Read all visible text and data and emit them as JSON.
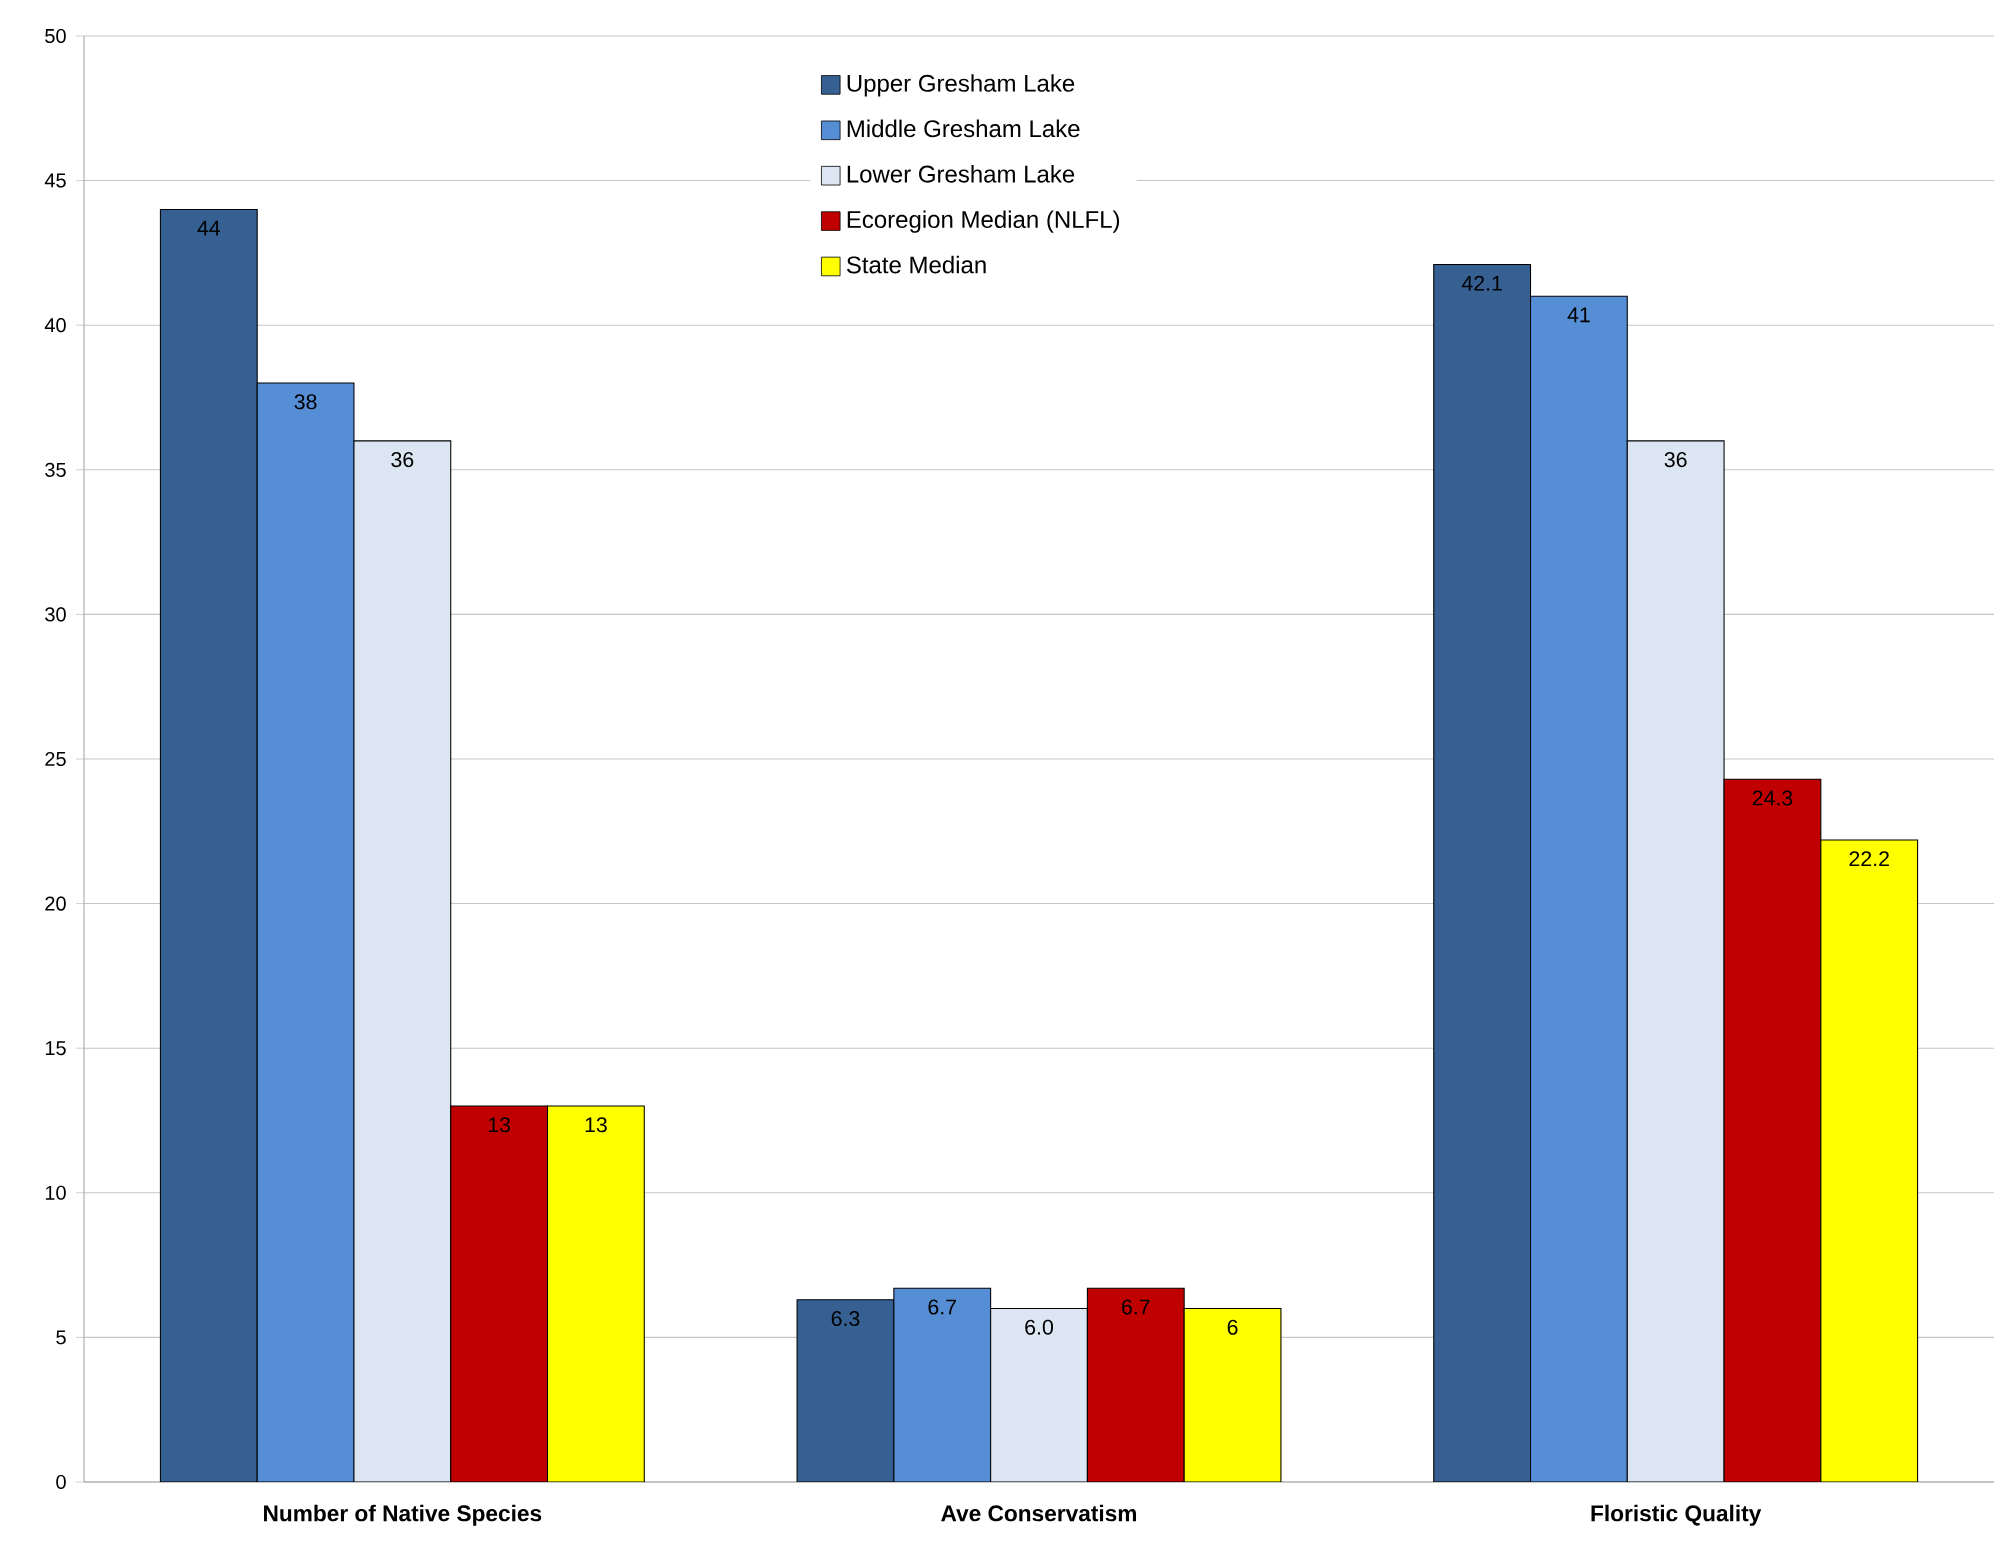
{
  "chart_data": {
    "type": "bar",
    "categories": [
      "Number of Native Species",
      "Ave Conservatism",
      "Floristic Quality"
    ],
    "series": [
      {
        "name": "Upper Gresham Lake",
        "color": "#366092",
        "values": [
          44,
          6.3,
          42.1
        ],
        "value_labels": [
          "44",
          "6.3",
          "42.1"
        ]
      },
      {
        "name": "Middle Gresham Lake",
        "color": "#558ed5",
        "values": [
          38,
          6.7,
          41
        ],
        "value_labels": [
          "38",
          "6.7",
          "41"
        ]
      },
      {
        "name": "Lower Gresham Lake",
        "color": "#dce6f2",
        "values": [
          36,
          6.0,
          36
        ],
        "value_labels": [
          "36",
          "6.0",
          "36"
        ]
      },
      {
        "name": "Ecoregion Median (NLFL)",
        "color": "#c00000",
        "values": [
          13,
          6.7,
          24.3
        ],
        "value_labels": [
          "13",
          "6.7",
          "24.3"
        ]
      },
      {
        "name": "State Median",
        "color": "#ffff00",
        "values": [
          13,
          6,
          22.2
        ],
        "value_labels": [
          "13",
          "6",
          "22.2"
        ]
      }
    ],
    "ylim": [
      0,
      50
    ],
    "yticks": [
      0,
      5,
      10,
      15,
      20,
      25,
      30,
      35,
      40,
      45,
      50
    ],
    "grid": "y",
    "legend": "top"
  }
}
